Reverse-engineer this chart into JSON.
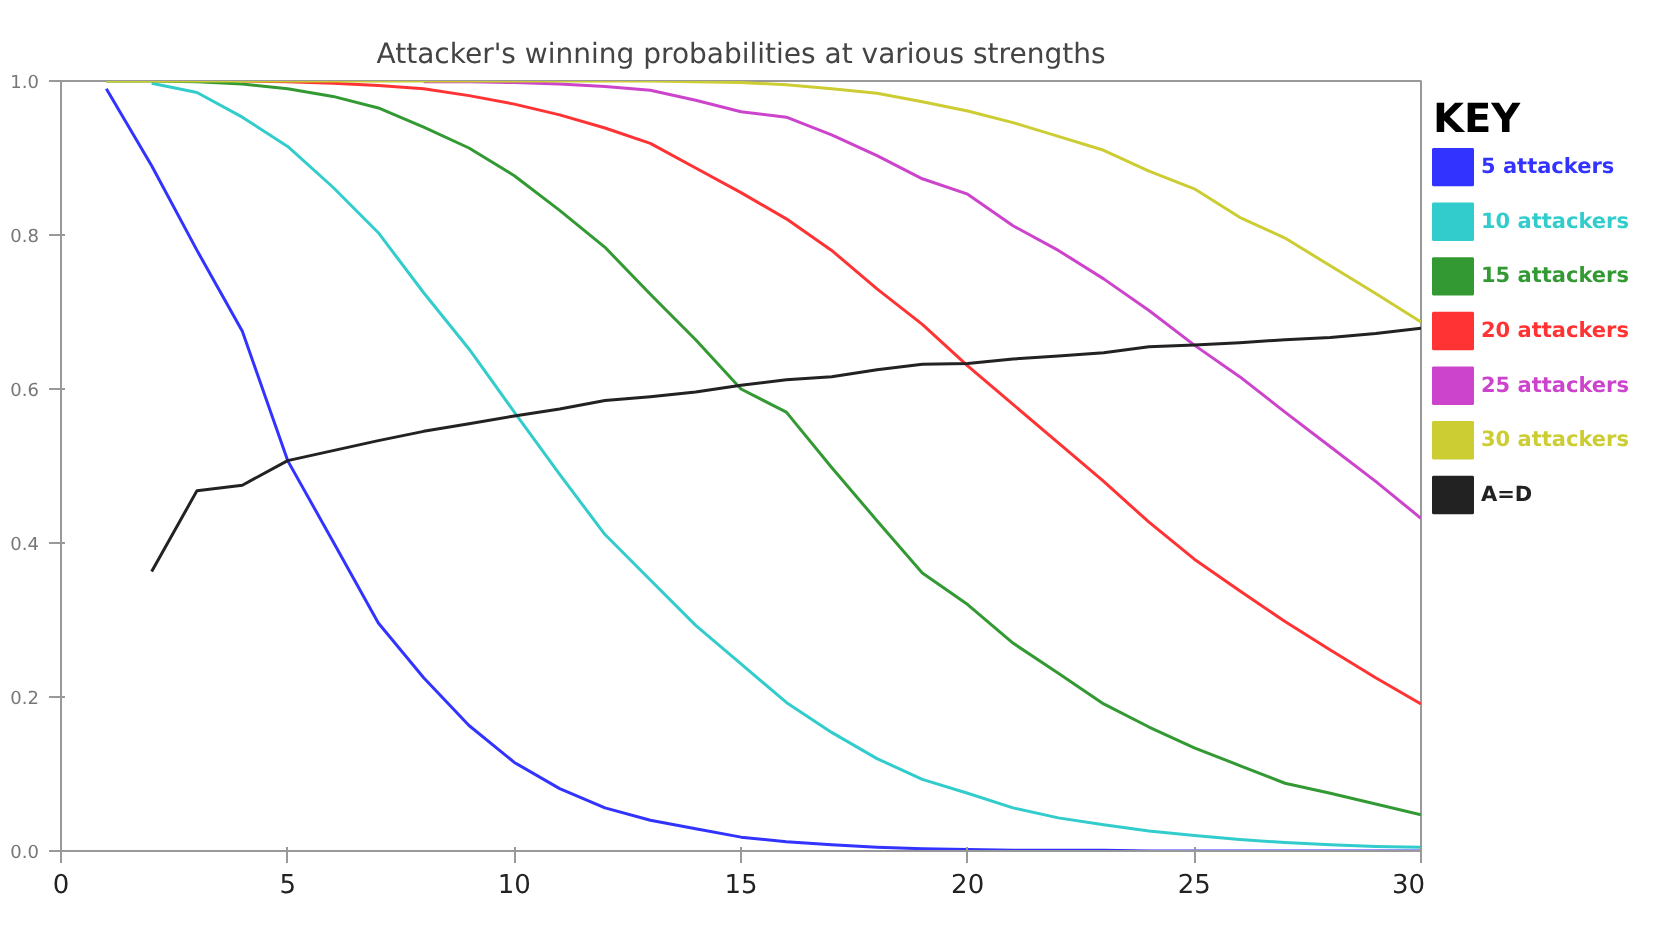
{
  "chart_data": {
    "type": "line",
    "title": "Attacker's winning probabilities at various strengths",
    "legend_title": "KEY",
    "legend": "right",
    "grid": false,
    "marker": "none",
    "line_style": "solid",
    "x": [
      1,
      2,
      3,
      4,
      5,
      6,
      7,
      8,
      9,
      10,
      11,
      12,
      13,
      14,
      15,
      16,
      17,
      18,
      19,
      20,
      21,
      22,
      23,
      24,
      25,
      26,
      27,
      28,
      29,
      30
    ],
    "xlim": [
      0,
      30
    ],
    "xticks": [
      0,
      5,
      10,
      15,
      20,
      25,
      30
    ],
    "ylim": [
      0,
      1
    ],
    "yticks": [
      {
        "value": 0,
        "label": "0.0"
      },
      {
        "value": 0.2,
        "label": "0.2"
      },
      {
        "value": 0.4,
        "label": "0.4"
      },
      {
        "value": 0.6,
        "label": "0.6"
      },
      {
        "value": 0.8,
        "label": "0.8"
      },
      {
        "value": 1,
        "label": "1.0"
      }
    ],
    "series": [
      {
        "name": "5 attackers",
        "color": "#3333ff",
        "values": [
          0.99,
          0.89,
          0.78,
          0.675,
          0.507,
          0.402,
          0.296,
          0.225,
          0.163,
          0.115,
          0.081,
          0.056,
          0.04,
          0.029,
          0.018,
          0.012,
          0.008,
          0.005,
          0.003,
          0.002,
          0.001,
          0.001,
          0.001,
          0,
          0,
          0,
          0,
          0,
          0,
          0
        ]
      },
      {
        "name": "10 attackers",
        "color": "#33cccc",
        "values": [
          null,
          0.997,
          0.985,
          0.953,
          0.915,
          0.862,
          0.803,
          0.725,
          0.652,
          0.57,
          0.489,
          0.411,
          0.352,
          0.293,
          0.243,
          0.193,
          0.154,
          0.12,
          0.093,
          0.075,
          0.056,
          0.043,
          0.034,
          0.026,
          0.02,
          0.015,
          0.011,
          0.008,
          0.006,
          0.005
        ]
      },
      {
        "name": "15 attackers",
        "color": "#339933",
        "values": [
          1,
          1,
          0.999,
          0.996,
          0.99,
          0.98,
          0.965,
          0.94,
          0.913,
          0.877,
          0.832,
          0.784,
          0.723,
          0.664,
          0.6,
          0.57,
          0.498,
          0.429,
          0.361,
          0.32,
          0.27,
          0.231,
          0.191,
          0.161,
          0.134,
          0.111,
          0.088,
          0.075,
          0.061,
          0.047
        ]
      },
      {
        "name": "20 attackers",
        "color": "#ff3333",
        "values": [
          null,
          null,
          null,
          1,
          0.999,
          0.997,
          0.994,
          0.99,
          0.981,
          0.97,
          0.956,
          0.939,
          0.919,
          0.887,
          0.855,
          0.821,
          0.78,
          0.73,
          0.684,
          0.63,
          0.58,
          0.53,
          0.48,
          0.427,
          0.379,
          0.338,
          0.298,
          0.261,
          0.225,
          0.191
        ]
      },
      {
        "name": "25 attackers",
        "color": "#cc44cc",
        "values": [
          null,
          null,
          null,
          null,
          null,
          null,
          null,
          0.999,
          0.999,
          0.998,
          0.996,
          0.993,
          0.988,
          0.975,
          0.96,
          0.953,
          0.93,
          0.903,
          0.873,
          0.853,
          0.812,
          0.78,
          0.743,
          0.702,
          0.657,
          0.616,
          0.57,
          0.525,
          0.48,
          0.432
        ]
      },
      {
        "name": "30 attackers",
        "color": "#cccc33",
        "values": [
          1,
          1,
          1,
          1,
          1,
          1,
          1,
          1,
          1,
          1,
          1,
          1,
          1,
          0.999,
          0.998,
          0.995,
          0.99,
          0.984,
          0.973,
          0.961,
          0.946,
          0.928,
          0.91,
          0.883,
          0.86,
          0.823,
          0.796,
          0.76,
          0.724,
          0.687
        ]
      },
      {
        "name": "A=D",
        "color": "#222222",
        "x": [
          2,
          3,
          4,
          5,
          6,
          7,
          8,
          9,
          10,
          11,
          12,
          13,
          14,
          15,
          16,
          17,
          18,
          19,
          20,
          21,
          22,
          23,
          24,
          25,
          26,
          27,
          28,
          29,
          30
        ],
        "values": [
          0.363,
          0.468,
          0.475,
          0.507,
          0.52,
          0.533,
          0.545,
          0.555,
          0.565,
          0.574,
          0.585,
          0.59,
          0.596,
          0.605,
          0.612,
          0.616,
          0.625,
          0.632,
          0.633,
          0.639,
          0.643,
          0.647,
          0.655,
          0.657,
          0.66,
          0.664,
          0.667,
          0.672,
          0.679
        ]
      }
    ]
  }
}
